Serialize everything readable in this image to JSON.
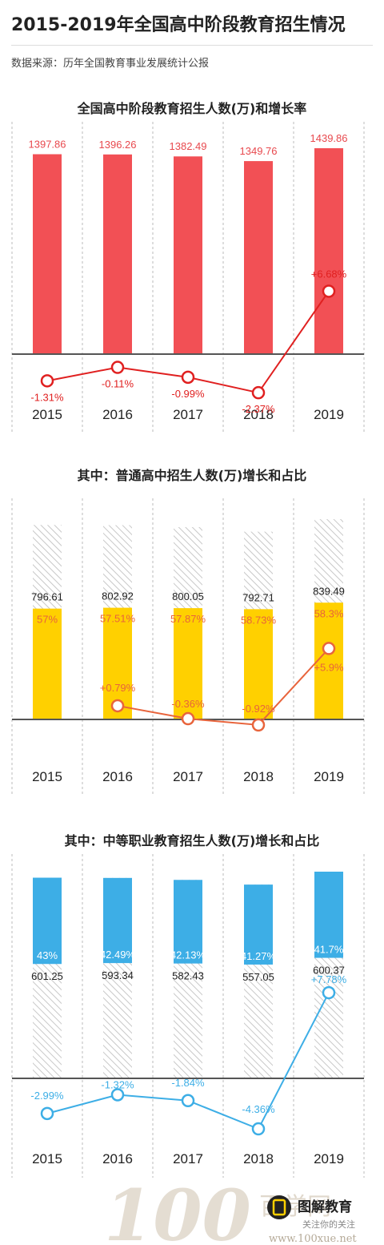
{
  "page": {
    "title": "2015-2019年全国高中阶段教育招生情况",
    "source": "数据来源：历年全国教育事业发展统计公报"
  },
  "footer": {
    "brand": "图解教育",
    "tagline": "关注你的关注",
    "site_name": "百学网",
    "site_url": "www.100xue.net"
  },
  "colors": {
    "total_bar": "#F25055",
    "total_line": "#E02020",
    "general_bar": "#FFD000",
    "general_line": "#E8643C",
    "vocational_bar": "#3DAEE6",
    "vocational_line": "#3DAEE6",
    "hatch": "#c8c8c8",
    "axis": "#555555"
  },
  "chart_data": [
    {
      "type": "bar",
      "title": "全国高中阶段教育招生人数(万)和增长率",
      "categories": [
        "2015",
        "2016",
        "2017",
        "2018",
        "2019"
      ],
      "series": [
        {
          "values": [
            1397.86,
            1396.26,
            1382.49,
            1349.76,
            1439.86
          ]
        },
        {
          "type": "line",
          "values": [
            -1.31,
            -0.11,
            -0.99,
            -2.37,
            6.68
          ],
          "labels": [
            "-1.31%",
            "-0.11%",
            "-0.99%",
            "-2.37%",
            "+6.68%"
          ]
        }
      ],
      "grid": true
    },
    {
      "type": "bar",
      "title": "其中：普通高中招生人数(万)增长和占比",
      "categories": [
        "2015",
        "2016",
        "2017",
        "2018",
        "2019"
      ],
      "series": [
        {
          "values": [
            796.61,
            802.92,
            800.05,
            792.71,
            839.49
          ]
        },
        {
          "values": [
            57,
            57.51,
            57.87,
            58.73,
            58.3
          ],
          "labels": [
            "57%",
            "57.51%",
            "57.87%",
            "58.73%",
            "58.3%"
          ]
        },
        {
          "type": "line",
          "values": [
            null,
            0.79,
            -0.36,
            -0.92,
            5.9
          ],
          "labels": [
            "",
            "+0.79%",
            "-0.36%",
            "-0.92%",
            "+5.9%"
          ]
        }
      ],
      "grid": true
    },
    {
      "type": "bar",
      "title": "其中：中等职业教育招生人数(万)增长和占比",
      "categories": [
        "2015",
        "2016",
        "2017",
        "2018",
        "2019"
      ],
      "series": [
        {
          "values": [
            601.25,
            593.34,
            582.43,
            557.05,
            600.37
          ]
        },
        {
          "values": [
            43,
            42.49,
            42.13,
            41.27,
            41.7
          ],
          "labels": [
            "43%",
            "42.49%",
            "42.13%",
            "41.27%",
            "41.7%"
          ]
        },
        {
          "type": "line",
          "values": [
            -2.99,
            -1.32,
            -1.84,
            -4.36,
            7.78
          ],
          "labels": [
            "-2.99%",
            "-1.32%",
            "-1.84%",
            "-4.36%",
            "+7.78%"
          ]
        }
      ],
      "grid": true
    }
  ]
}
